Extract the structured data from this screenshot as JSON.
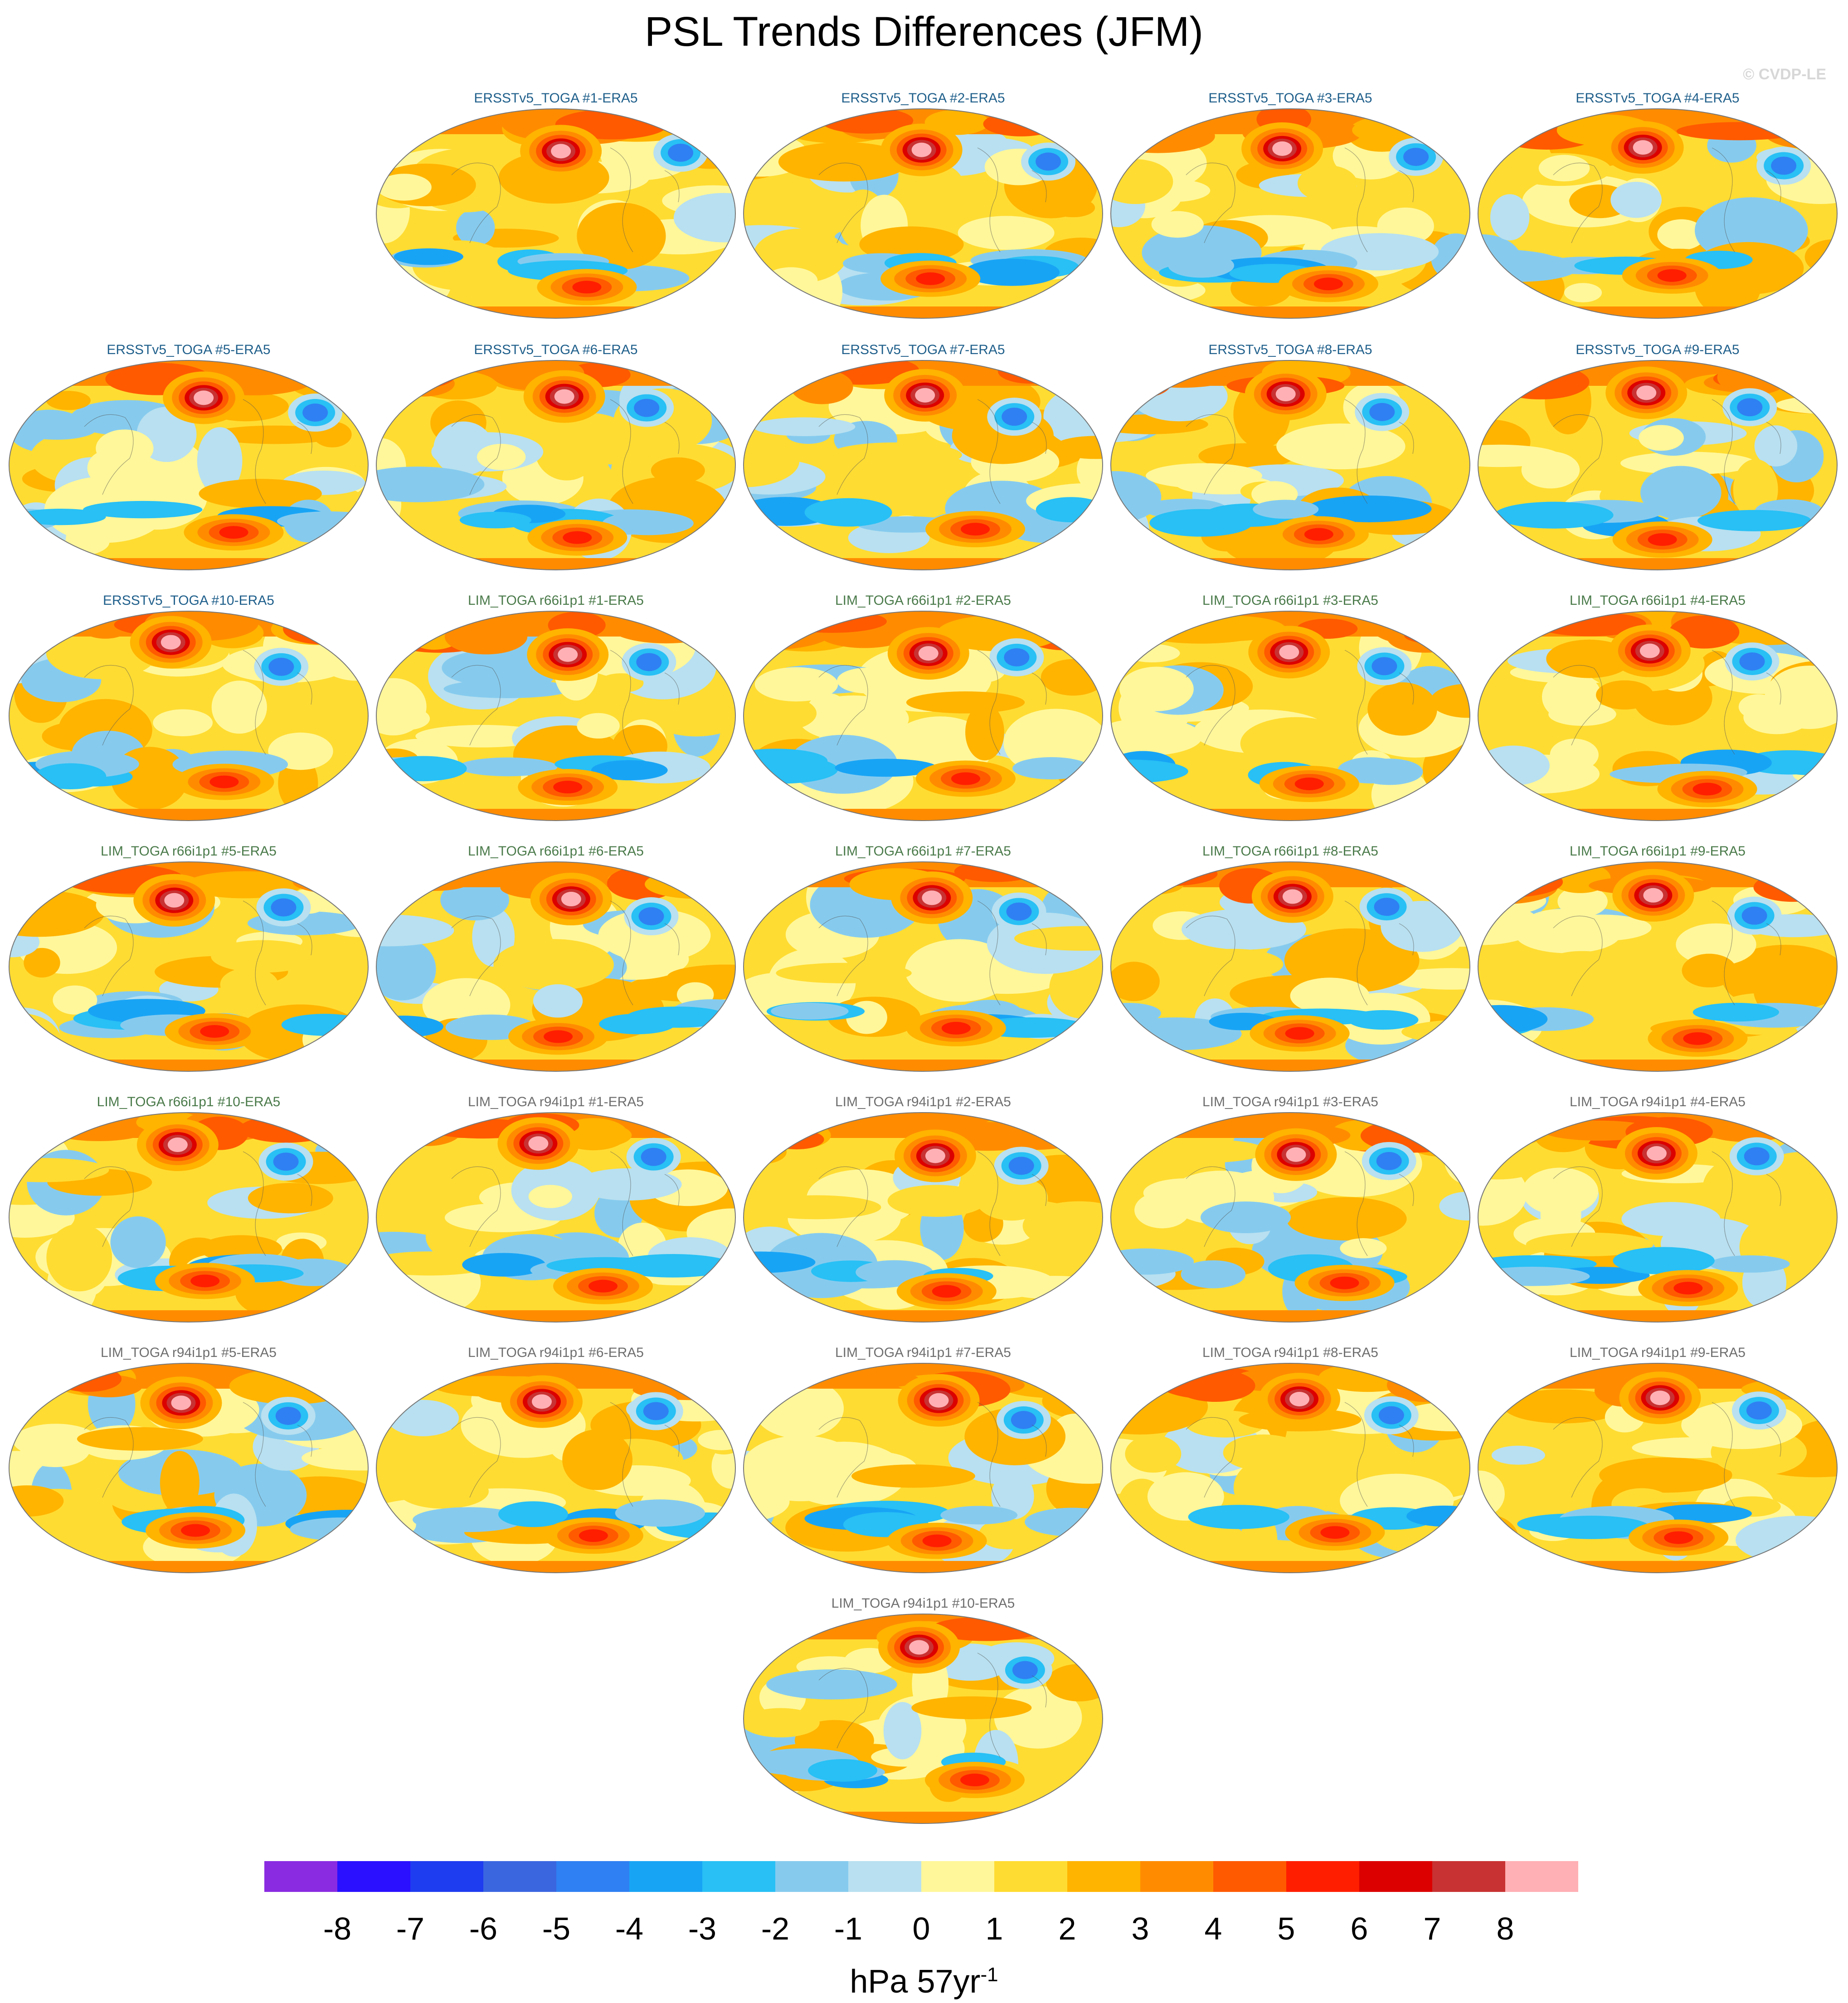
{
  "title": "PSL Trends Differences (JFM)",
  "credit": "© CVDP-LE",
  "units": {
    "base": "hPa 57yr",
    "exponent": "-1"
  },
  "colorbar": {
    "colors": [
      "#8a2be2",
      "#2a10ff",
      "#1e3cf0",
      "#3a66e0",
      "#2f80f2",
      "#18a4f5",
      "#28c0f5",
      "#86cbee",
      "#b8e0f0",
      "#fff79a",
      "#ffdc32",
      "#ffb400",
      "#ff8c00",
      "#ff5a00",
      "#ff1e00",
      "#dc0000",
      "#c83232",
      "#ffb0b4"
    ],
    "ticks": [
      "-8",
      "-7",
      "-6",
      "-5",
      "-4",
      "-3",
      "-2",
      "-1",
      "0",
      "1",
      "2",
      "3",
      "4",
      "5",
      "6",
      "7",
      "8"
    ]
  },
  "label_colors": {
    "ersst": "#1f5f8b",
    "lim66": "#4a7a4a",
    "lim94": "#6e6e6e"
  },
  "panels": [
    {
      "label": "ERSSTv5_TOGA #1-ERA5",
      "group": "ersst"
    },
    {
      "label": "ERSSTv5_TOGA #2-ERA5",
      "group": "ersst"
    },
    {
      "label": "ERSSTv5_TOGA #3-ERA5",
      "group": "ersst"
    },
    {
      "label": "ERSSTv5_TOGA #4-ERA5",
      "group": "ersst"
    },
    {
      "label": "ERSSTv5_TOGA #5-ERA5",
      "group": "ersst"
    },
    {
      "label": "ERSSTv5_TOGA #6-ERA5",
      "group": "ersst"
    },
    {
      "label": "ERSSTv5_TOGA #7-ERA5",
      "group": "ersst"
    },
    {
      "label": "ERSSTv5_TOGA #8-ERA5",
      "group": "ersst"
    },
    {
      "label": "ERSSTv5_TOGA #9-ERA5",
      "group": "ersst"
    },
    {
      "label": "ERSSTv5_TOGA #10-ERA5",
      "group": "ersst"
    },
    {
      "label": "LIM_TOGA r66i1p1 #1-ERA5",
      "group": "lim66"
    },
    {
      "label": "LIM_TOGA r66i1p1 #2-ERA5",
      "group": "lim66"
    },
    {
      "label": "LIM_TOGA r66i1p1 #3-ERA5",
      "group": "lim66"
    },
    {
      "label": "LIM_TOGA r66i1p1 #4-ERA5",
      "group": "lim66"
    },
    {
      "label": "LIM_TOGA r66i1p1 #5-ERA5",
      "group": "lim66"
    },
    {
      "label": "LIM_TOGA r66i1p1 #6-ERA5",
      "group": "lim66"
    },
    {
      "label": "LIM_TOGA r66i1p1 #7-ERA5",
      "group": "lim66"
    },
    {
      "label": "LIM_TOGA r66i1p1 #8-ERA5",
      "group": "lim66"
    },
    {
      "label": "LIM_TOGA r66i1p1 #9-ERA5",
      "group": "lim66"
    },
    {
      "label": "LIM_TOGA r66i1p1 #10-ERA5",
      "group": "lim66"
    },
    {
      "label": "LIM_TOGA r94i1p1 #1-ERA5",
      "group": "lim94"
    },
    {
      "label": "LIM_TOGA r94i1p1 #2-ERA5",
      "group": "lim94"
    },
    {
      "label": "LIM_TOGA r94i1p1 #3-ERA5",
      "group": "lim94"
    },
    {
      "label": "LIM_TOGA r94i1p1 #4-ERA5",
      "group": "lim94"
    },
    {
      "label": "LIM_TOGA r94i1p1 #5-ERA5",
      "group": "lim94"
    },
    {
      "label": "LIM_TOGA r94i1p1 #6-ERA5",
      "group": "lim94"
    },
    {
      "label": "LIM_TOGA r94i1p1 #7-ERA5",
      "group": "lim94"
    },
    {
      "label": "LIM_TOGA r94i1p1 #8-ERA5",
      "group": "lim94"
    },
    {
      "label": "LIM_TOGA r94i1p1 #9-ERA5",
      "group": "lim94"
    },
    {
      "label": "LIM_TOGA r94i1p1 #10-ERA5",
      "group": "lim94"
    }
  ]
}
